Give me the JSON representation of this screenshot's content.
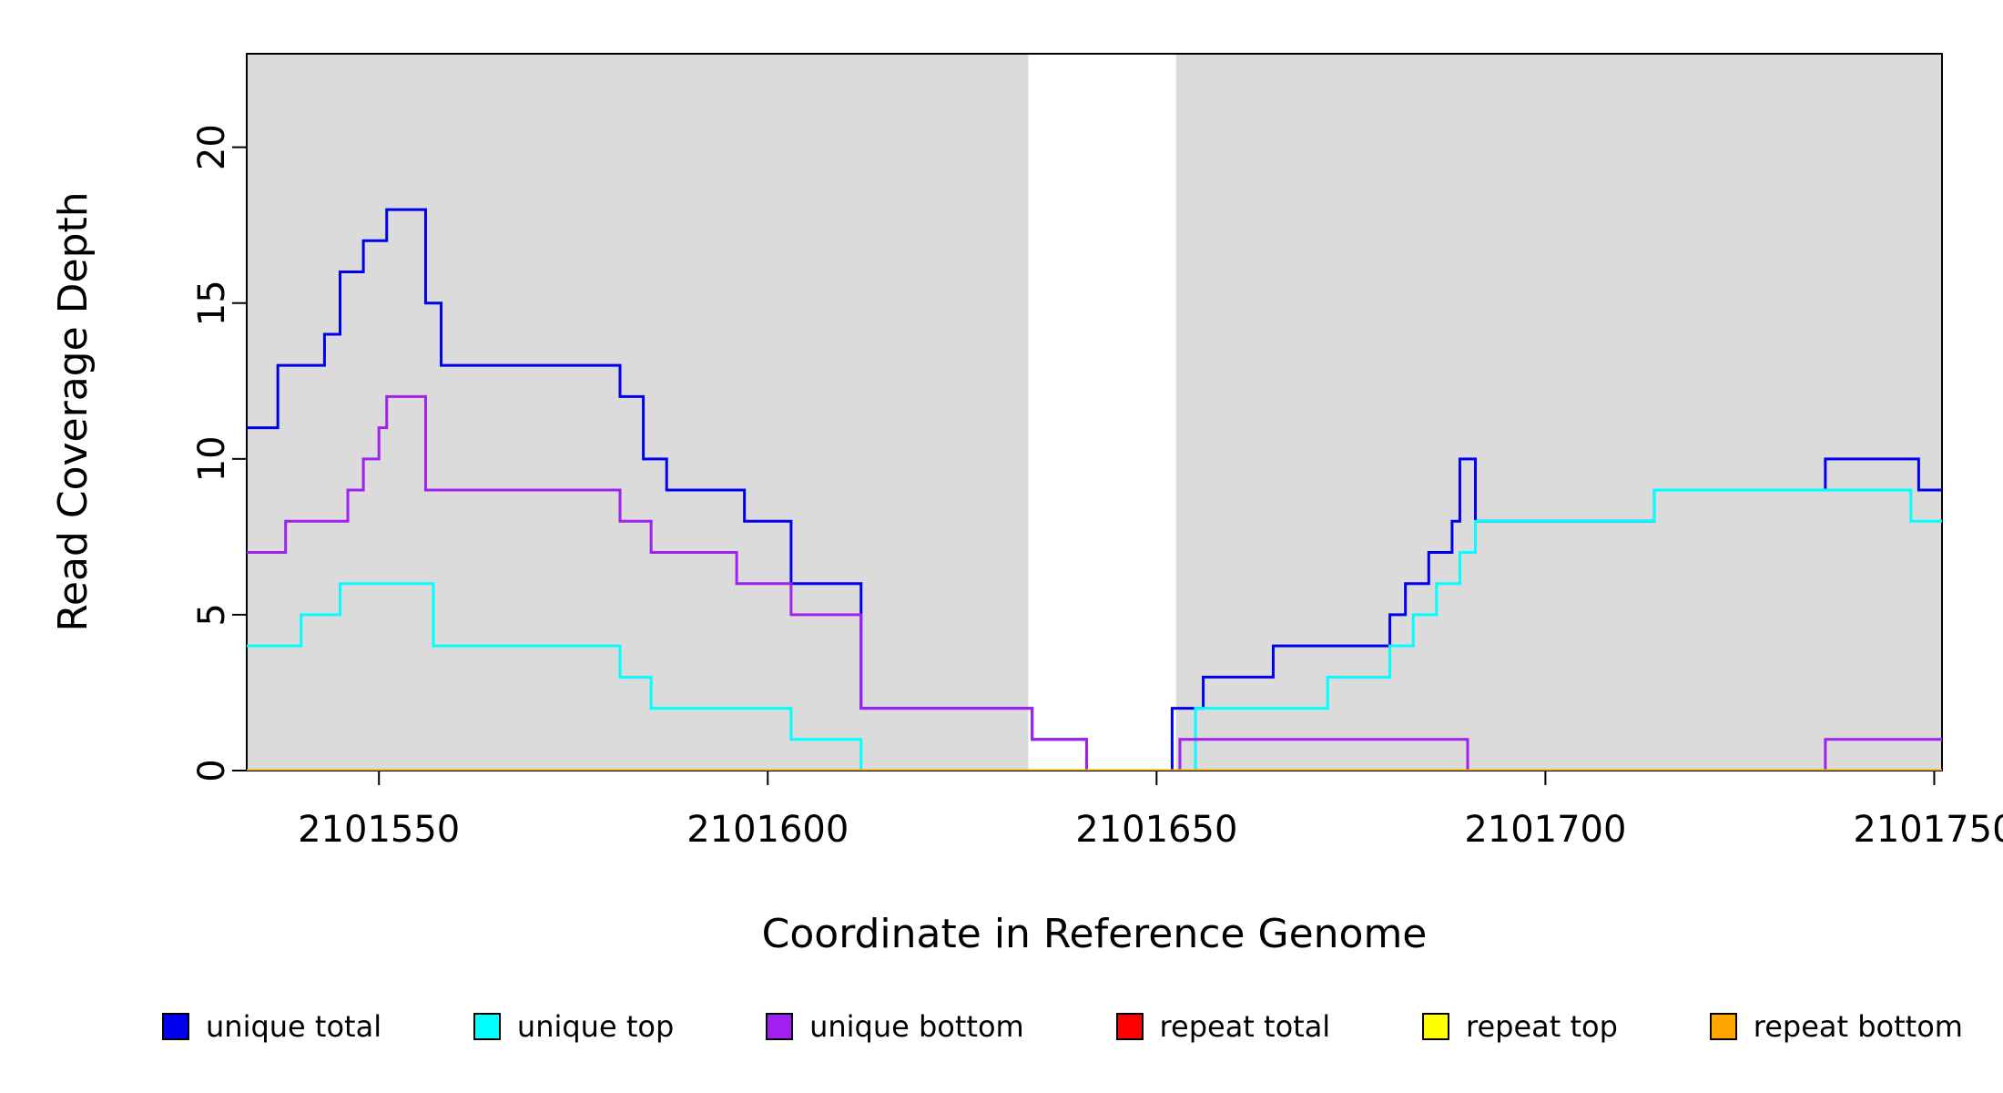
{
  "chart_data": {
    "type": "line",
    "subtype": "step",
    "title": "",
    "xlabel": "Coordinate in Reference Genome",
    "ylabel": "Read Coverage Depth",
    "xlim": [
      2101533,
      2101751
    ],
    "ylim": [
      0,
      23
    ],
    "xticks": [
      2101550,
      2101600,
      2101650,
      2101700,
      2101750
    ],
    "yticks": [
      0,
      5,
      10,
      15,
      20
    ],
    "grid": false,
    "legend_position": "bottom",
    "plot_background": "#ffffff",
    "box_color": "#000000",
    "shaded_regions": [
      {
        "x0": 2101533,
        "x1": 2101633.5,
        "color": "#dbdbdb"
      },
      {
        "x0": 2101652.5,
        "x1": 2101751,
        "color": "#dbdbdb"
      }
    ],
    "series": [
      {
        "name": "unique total",
        "color": "#0000ee",
        "points": [
          [
            2101533,
            11
          ],
          [
            2101537,
            13
          ],
          [
            2101543,
            14
          ],
          [
            2101545,
            16
          ],
          [
            2101548,
            17
          ],
          [
            2101551,
            18
          ],
          [
            2101556,
            15
          ],
          [
            2101558,
            13
          ],
          [
            2101581,
            12
          ],
          [
            2101584,
            10
          ],
          [
            2101587,
            9
          ],
          [
            2101597,
            8
          ],
          [
            2101603,
            6
          ],
          [
            2101612,
            2
          ],
          [
            2101634,
            1
          ],
          [
            2101641,
            0
          ],
          [
            2101652,
            2
          ],
          [
            2101656,
            3
          ],
          [
            2101665,
            4
          ],
          [
            2101680,
            5
          ],
          [
            2101682,
            6
          ],
          [
            2101685,
            7
          ],
          [
            2101688,
            8
          ],
          [
            2101689,
            10
          ],
          [
            2101691,
            8
          ],
          [
            2101714,
            9
          ],
          [
            2101736,
            10
          ],
          [
            2101748,
            9
          ]
        ]
      },
      {
        "name": "unique top",
        "color": "#00ffff",
        "points": [
          [
            2101533,
            4
          ],
          [
            2101540,
            5
          ],
          [
            2101545,
            6
          ],
          [
            2101557,
            4
          ],
          [
            2101581,
            3
          ],
          [
            2101585,
            2
          ],
          [
            2101603,
            1
          ],
          [
            2101612,
            0
          ],
          [
            2101655,
            2
          ],
          [
            2101672,
            3
          ],
          [
            2101680,
            4
          ],
          [
            2101683,
            5
          ],
          [
            2101686,
            6
          ],
          [
            2101689,
            7
          ],
          [
            2101691,
            8
          ],
          [
            2101714,
            9
          ],
          [
            2101747,
            8
          ]
        ]
      },
      {
        "name": "unique bottom",
        "color": "#a020f0",
        "points": [
          [
            2101533,
            7
          ],
          [
            2101538,
            8
          ],
          [
            2101546,
            9
          ],
          [
            2101548,
            10
          ],
          [
            2101550,
            11
          ],
          [
            2101551,
            12
          ],
          [
            2101556,
            9
          ],
          [
            2101581,
            8
          ],
          [
            2101585,
            7
          ],
          [
            2101596,
            6
          ],
          [
            2101603,
            5
          ],
          [
            2101612,
            2
          ],
          [
            2101634,
            1
          ],
          [
            2101641,
            0
          ],
          [
            2101653,
            1
          ],
          [
            2101690,
            0
          ],
          [
            2101736,
            1
          ]
        ]
      },
      {
        "name": "repeat total",
        "color": "#ff0000",
        "points": [
          [
            2101533,
            0
          ]
        ]
      },
      {
        "name": "repeat top",
        "color": "#ffff00",
        "points": [
          [
            2101533,
            0
          ]
        ]
      },
      {
        "name": "repeat bottom",
        "color": "#ffa500",
        "points": [
          [
            2101533,
            0
          ]
        ]
      }
    ]
  }
}
